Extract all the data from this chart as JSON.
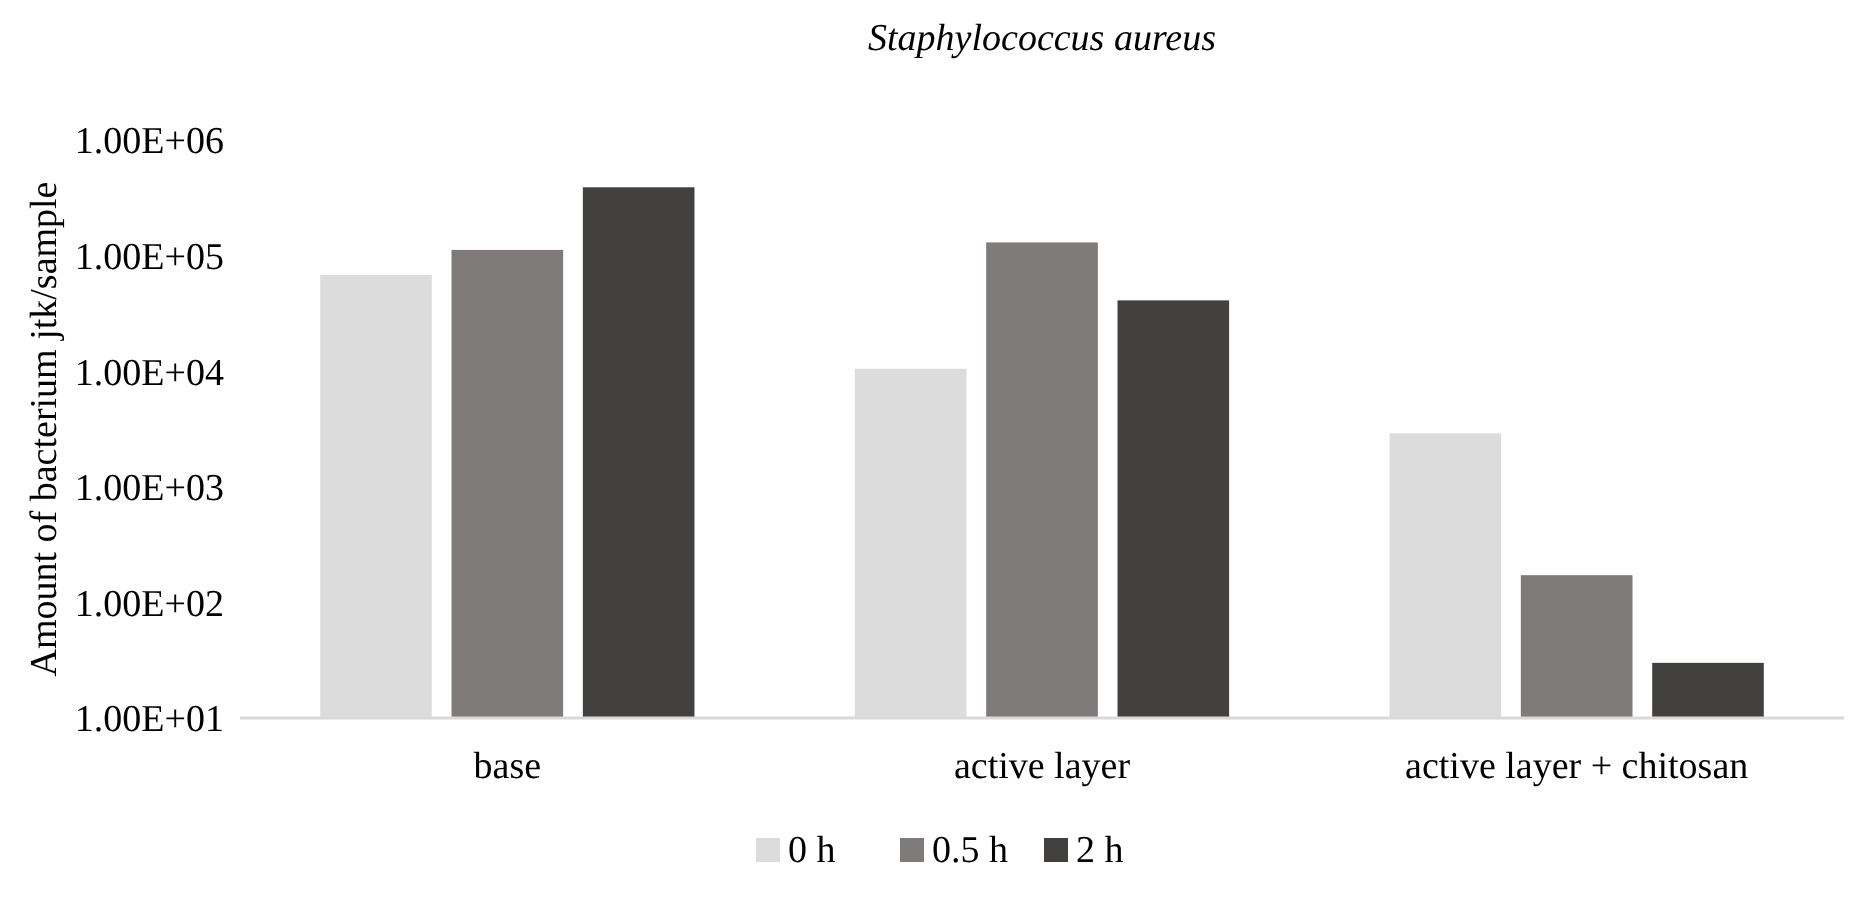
{
  "chart_data": {
    "type": "bar",
    "title": "Staphylococcus aureus",
    "ylabel": "Amount of bacterium jtk/sample",
    "categories": [
      "base",
      "active layer",
      "active layer + chitosan"
    ],
    "series": [
      {
        "name": "0 h",
        "color": "#dcdcdc",
        "values": [
          68000,
          10500,
          2900
        ]
      },
      {
        "name": "0.5 h",
        "color": "#7f7b7a",
        "values": [
          112000,
          130000,
          172
        ]
      },
      {
        "name": "2 h",
        "color": "#434140",
        "values": [
          390000,
          41000,
          30
        ]
      }
    ],
    "log": true,
    "ylim": [
      10,
      1000000
    ],
    "yticks": [
      {
        "value": 10,
        "label": "1.00E+01"
      },
      {
        "value": 100,
        "label": "1.00E+02"
      },
      {
        "value": 1000,
        "label": "1.00E+03"
      },
      {
        "value": 10000,
        "label": "1.00E+04"
      },
      {
        "value": 100000,
        "label": "1.00E+05"
      },
      {
        "value": 1000000,
        "label": "1.00E+06"
      }
    ],
    "grid": false,
    "legend": "bottom"
  }
}
